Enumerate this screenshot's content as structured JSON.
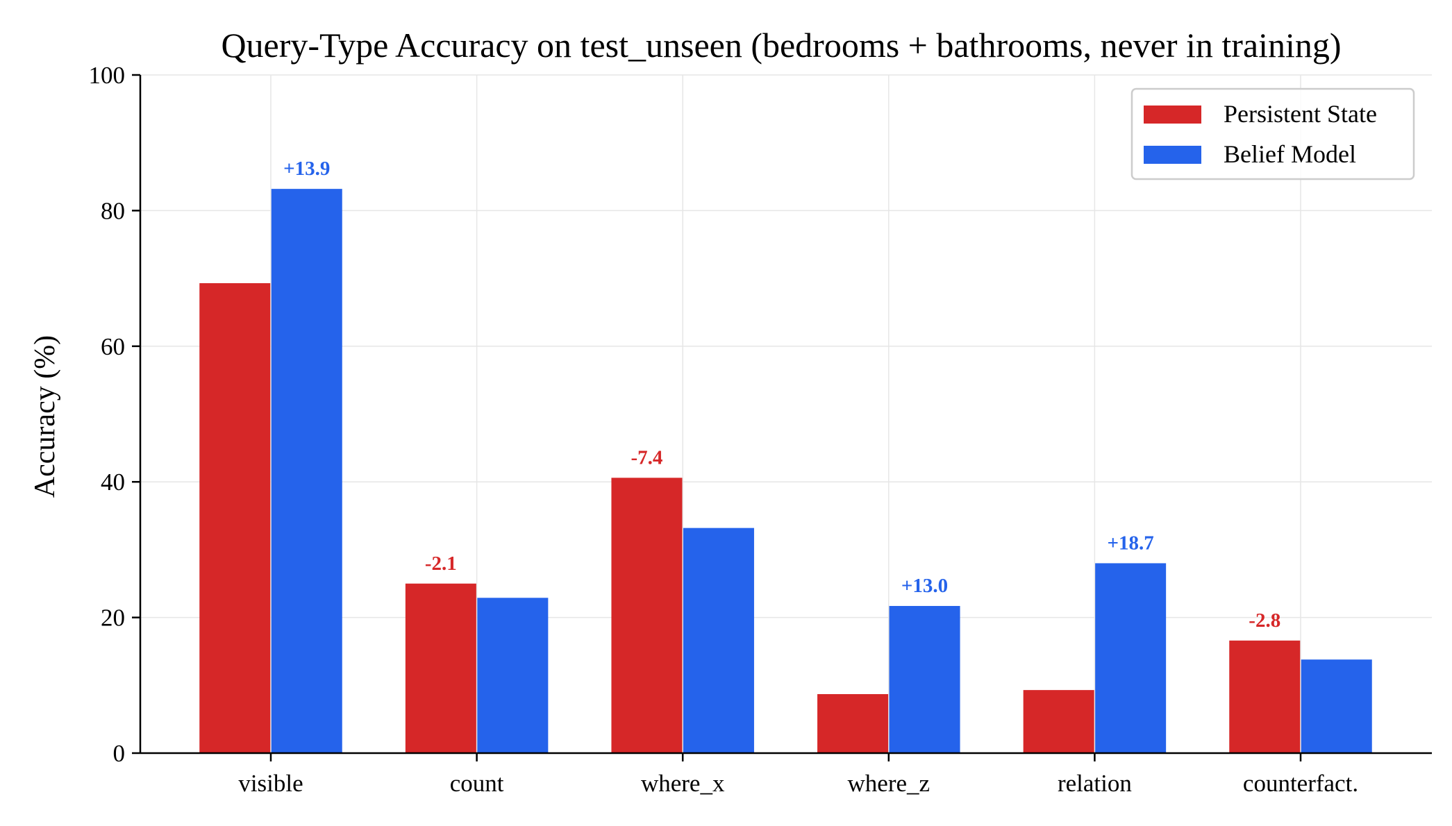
{
  "chart_data": {
    "type": "bar",
    "title": "Query-Type Accuracy on test_unseen (bedrooms + bathrooms, never in training)",
    "xlabel": "",
    "ylabel": "Accuracy (%)",
    "ylim": [
      0,
      100
    ],
    "yticks": [
      "0",
      "20",
      "40",
      "60",
      "80",
      "100"
    ],
    "grid": true,
    "legend_position": "top-right",
    "categories": [
      "visible",
      "count",
      "where_x",
      "where_z",
      "relation",
      "counterfact."
    ],
    "series": [
      {
        "name": "Persistent State",
        "color": "#d62728",
        "values": [
          69.3,
          25.0,
          40.6,
          8.7,
          9.3,
          16.6
        ]
      },
      {
        "name": "Belief Model",
        "color": "#2563eb",
        "values": [
          83.2,
          22.9,
          33.2,
          21.7,
          28.0,
          13.8
        ]
      }
    ],
    "annotations": [
      "+13.9",
      "-2.1",
      "-7.4",
      "+13.0",
      "+18.7",
      "-2.8"
    ],
    "annotation_colors": [
      "#2563eb",
      "#d62728",
      "#d62728",
      "#2563eb",
      "#2563eb",
      "#d62728"
    ]
  }
}
